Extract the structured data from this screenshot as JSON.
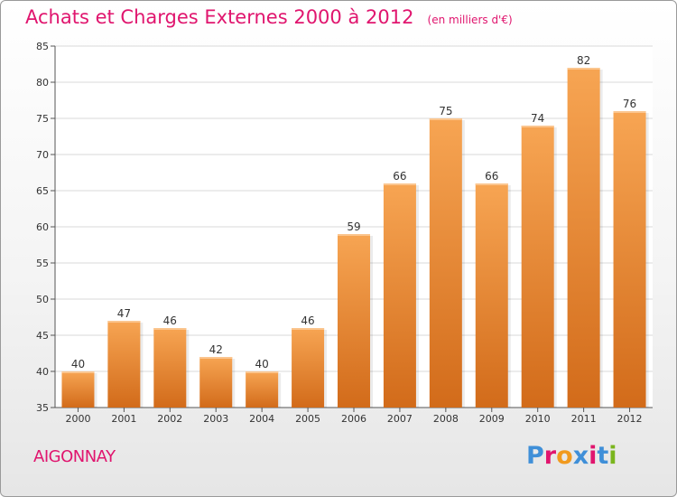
{
  "header": {
    "title": "Achats et Charges Externes 2000 à 2012",
    "subtitle": "(en milliers d'€)"
  },
  "footer": {
    "commune": "AIGONNAY",
    "logo_text": "Proxiti",
    "logo_colors": [
      "#3f8fd8",
      "#e0156e",
      "#f19a1f",
      "#3f8fd8",
      "#e0156e",
      "#3f8fd8",
      "#7ab51d"
    ]
  },
  "colors": {
    "accent": "#e0156e",
    "bar_top": "#f7a553",
    "bar_bottom": "#d26b1a",
    "grid": "#d8d8d8"
  },
  "chart_data": {
    "type": "bar",
    "categories": [
      "2000",
      "2001",
      "2002",
      "2003",
      "2004",
      "2005",
      "2006",
      "2007",
      "2008",
      "2009",
      "2010",
      "2011",
      "2012"
    ],
    "values": [
      40,
      47,
      46,
      42,
      40,
      46,
      59,
      66,
      75,
      66,
      74,
      82,
      76
    ],
    "title": "Achats et Charges Externes 2000 à 2012",
    "subtitle": "(en milliers d'€)",
    "xlabel": "",
    "ylabel": "",
    "ylim": [
      35,
      85
    ],
    "yticks": [
      35,
      40,
      45,
      50,
      55,
      60,
      65,
      70,
      75,
      80,
      85
    ],
    "grid": true,
    "legend": "none"
  }
}
